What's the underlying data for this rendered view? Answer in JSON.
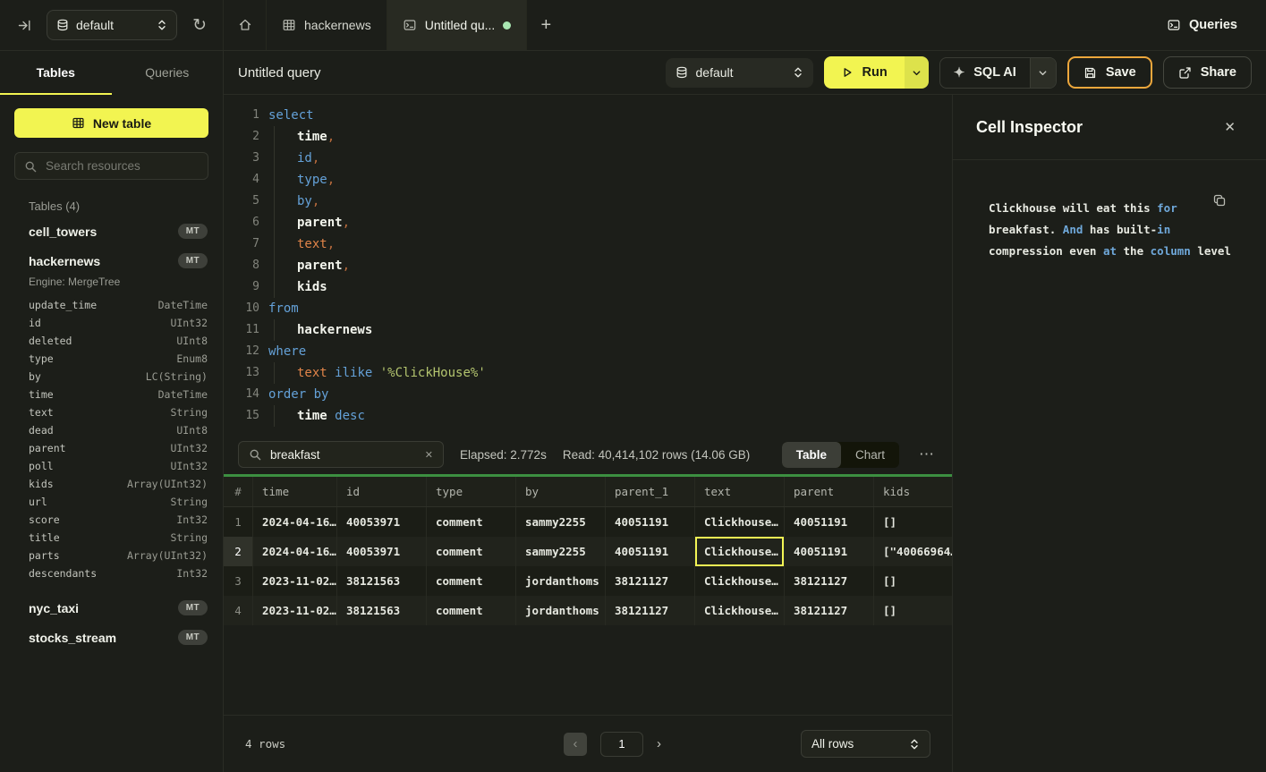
{
  "colors": {
    "accent_yellow": "#f2f451",
    "accent_amber": "#eda73c",
    "grid_green": "#3c8f41",
    "tab_green_dot": "#a9e7b2",
    "keyword_blue": "#64a1d8",
    "identifier_orange": "#e08449",
    "string_green": "#b4c56f"
  },
  "topbar": {
    "database": {
      "label": "default"
    },
    "refresh_glyph": "↻",
    "tabs": [
      {
        "id": "home",
        "label": ""
      },
      {
        "id": "hackernews",
        "label": "hackernews"
      },
      {
        "id": "untitled-query",
        "label": "Untitled qu...",
        "active": true,
        "unsaved": true
      }
    ],
    "new_tab_glyph": "+",
    "queries_button": {
      "label": "Queries"
    }
  },
  "sidebar": {
    "tabs": [
      {
        "label": "Tables",
        "active": true
      },
      {
        "label": "Queries",
        "active": false
      }
    ],
    "new_table_label": "New table",
    "search_placeholder": "Search resources",
    "section_label": "Tables (4)",
    "items": [
      {
        "name": "cell_towers",
        "badge": "MT"
      },
      {
        "name": "hackernews",
        "badge": "MT",
        "expanded": true,
        "engine": "Engine: MergeTree",
        "columns": [
          [
            "update_time",
            "DateTime"
          ],
          [
            "id",
            "UInt32"
          ],
          [
            "deleted",
            "UInt8"
          ],
          [
            "type",
            "Enum8"
          ],
          [
            "by",
            "LC(String)"
          ],
          [
            "time",
            "DateTime"
          ],
          [
            "text",
            "String"
          ],
          [
            "dead",
            "UInt8"
          ],
          [
            "parent",
            "UInt32"
          ],
          [
            "poll",
            "UInt32"
          ],
          [
            "kids",
            "Array(UInt32)"
          ],
          [
            "url",
            "String"
          ],
          [
            "score",
            "Int32"
          ],
          [
            "title",
            "String"
          ],
          [
            "parts",
            "Array(UInt32)"
          ],
          [
            "descendants",
            "Int32"
          ]
        ]
      },
      {
        "name": "nyc_taxi",
        "badge": "MT"
      },
      {
        "name": "stocks_stream",
        "badge": "MT"
      }
    ]
  },
  "toolbar": {
    "title": "Untitled query",
    "database": "default",
    "run_label": "Run",
    "sql_ai_glyph": "✦",
    "sql_ai_label": "SQL AI",
    "save_label": "Save",
    "share_label": "Share"
  },
  "editor": {
    "lines": [
      {
        "n": 1,
        "indent": false,
        "tokens": [
          [
            "kw",
            "select"
          ]
        ]
      },
      {
        "n": 2,
        "indent": true,
        "tokens": [
          [
            "id",
            "time"
          ],
          [
            "op",
            ","
          ]
        ]
      },
      {
        "n": 3,
        "indent": true,
        "tokens": [
          [
            "kw",
            "id"
          ],
          [
            "op",
            ","
          ]
        ]
      },
      {
        "n": 4,
        "indent": true,
        "tokens": [
          [
            "kw",
            "type"
          ],
          [
            "op",
            ","
          ]
        ]
      },
      {
        "n": 5,
        "indent": true,
        "tokens": [
          [
            "kw",
            "by"
          ],
          [
            "op",
            ","
          ]
        ]
      },
      {
        "n": 6,
        "indent": true,
        "tokens": [
          [
            "id",
            "parent"
          ],
          [
            "op",
            ","
          ]
        ]
      },
      {
        "n": 7,
        "indent": true,
        "tokens": [
          [
            "fn",
            "text"
          ],
          [
            "op",
            ","
          ]
        ]
      },
      {
        "n": 8,
        "indent": true,
        "tokens": [
          [
            "id",
            "parent"
          ],
          [
            "op",
            ","
          ]
        ]
      },
      {
        "n": 9,
        "indent": true,
        "tokens": [
          [
            "id",
            "kids"
          ]
        ]
      },
      {
        "n": 10,
        "indent": false,
        "tokens": [
          [
            "kw",
            "from"
          ]
        ]
      },
      {
        "n": 11,
        "indent": true,
        "tokens": [
          [
            "id",
            "hackernews"
          ]
        ]
      },
      {
        "n": 12,
        "indent": false,
        "tokens": [
          [
            "kw",
            "where"
          ]
        ]
      },
      {
        "n": 13,
        "indent": true,
        "tokens": [
          [
            "fn",
            "text"
          ],
          [
            "pl",
            " "
          ],
          [
            "kw",
            "ilike"
          ],
          [
            "pl",
            " "
          ],
          [
            "str",
            "'%ClickHouse%'"
          ]
        ]
      },
      {
        "n": 14,
        "indent": false,
        "tokens": [
          [
            "kw",
            "order by"
          ]
        ]
      },
      {
        "n": 15,
        "indent": true,
        "tokens": [
          [
            "id",
            "time"
          ],
          [
            "pl",
            " "
          ],
          [
            "kw",
            "desc"
          ]
        ]
      }
    ]
  },
  "results": {
    "search_value": "breakfast",
    "clear_glyph": "✕",
    "elapsed": "Elapsed: 2.772s",
    "read": "Read: 40,414,102 rows (14.06 GB)",
    "view_toggle": [
      {
        "label": "Table",
        "active": true
      },
      {
        "label": "Chart",
        "active": false
      }
    ],
    "more_glyph": "⋯",
    "table": {
      "columns": [
        "#",
        "time",
        "id",
        "type",
        "by",
        "parent_1",
        "text",
        "parent",
        "kids"
      ],
      "rows": [
        [
          "1",
          "2024-04-16…",
          "40053971",
          "comment",
          "sammy2255",
          "40051191",
          "Clickhouse…",
          "40051191",
          "[]"
        ],
        [
          "2",
          "2024-04-16…",
          "40053971",
          "comment",
          "sammy2255",
          "40051191",
          "Clickhouse…",
          "40051191",
          "[\"40066964…"
        ],
        [
          "3",
          "2023-11-02…",
          "38121563",
          "comment",
          "jordanthoms",
          "38121127",
          "Clickhouse…",
          "38121127",
          "[]"
        ],
        [
          "4",
          "2023-11-02…",
          "38121563",
          "comment",
          "jordanthoms",
          "38121127",
          "Clickhouse…",
          "38121127",
          "[]"
        ]
      ],
      "selected": {
        "row": 1,
        "col": 6
      }
    }
  },
  "footer": {
    "row_count": "4 rows",
    "prev_glyph": "‹",
    "page": "1",
    "next_glyph": "›",
    "page_size": "All rows"
  },
  "inspector": {
    "title": "Cell Inspector",
    "close_glyph": "✕",
    "content_tokens": [
      [
        "pl",
        "Clickhouse will eat this "
      ],
      [
        "kw",
        "for"
      ],
      [
        "pl",
        " breakfast. "
      ],
      [
        "kw",
        "And"
      ],
      [
        "pl",
        " has built-"
      ],
      [
        "kw",
        "in"
      ],
      [
        "pl",
        " compression even "
      ],
      [
        "kw",
        "at"
      ],
      [
        "pl",
        " the "
      ],
      [
        "kw",
        "column"
      ],
      [
        "pl",
        " level"
      ]
    ]
  }
}
